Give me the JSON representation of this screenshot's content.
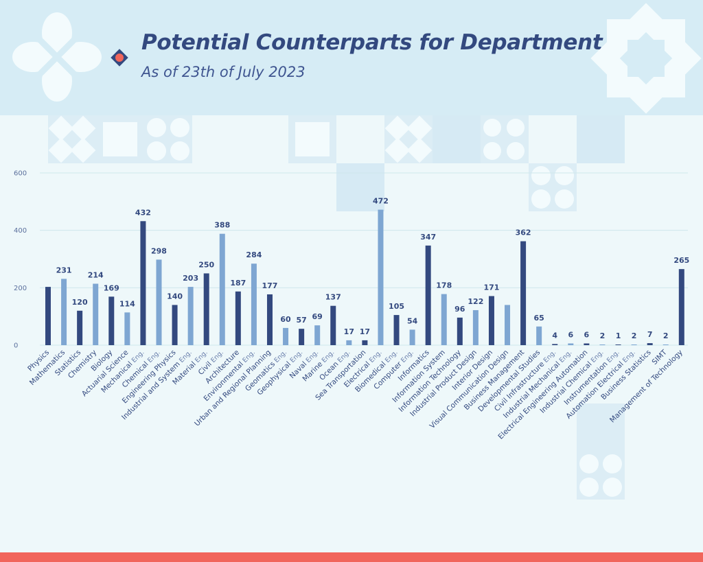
{
  "header": {
    "title": "Potential Counterparts for Department",
    "subtitle": "As of 23th of July 2023"
  },
  "colors": {
    "dark": "#33497f",
    "light": "#7ea6d2",
    "accent": "#f1655b",
    "grid": "#cfe7ec",
    "header_bg": "#d6ecf5",
    "background": "#eef8fa"
  },
  "icons": {
    "bullet": "diamond-bullet-icon",
    "logo": "four-petal-logo-icon",
    "ornament": "eight-point-star-icon"
  },
  "chart_data": {
    "type": "bar",
    "title": "Potential Counterparts for Department",
    "subtitle": "As of 23th of July 2023",
    "xlabel": "",
    "ylabel": "",
    "ylim": [
      0,
      600
    ],
    "yticks": [
      0,
      200,
      400,
      600
    ],
    "grid": true,
    "legend": "none",
    "categories": [
      "Physics",
      "Mathematics",
      "Statistics",
      "Chemistry",
      "Biology",
      "Actuarial Science",
      "Mechanical Eng.",
      "Chemical Eng.",
      "Engineering Physics",
      "Industrial and System Eng.",
      "Material Eng.",
      "Civil Eng.",
      "Architecture",
      "Environmental Eng.",
      "Urban and Regional Planning",
      "Geomatics Eng.",
      "Geophysical Eng.",
      "Naval Eng.",
      "Marine Eng.",
      "Ocean Eng.",
      "Sea Transportation",
      "Electrical Eng.",
      "Biomedical Eng.",
      "Computer Eng.",
      "Informatics",
      "Information System",
      "Information Technology",
      "Industrial Product Design",
      "Interior Design",
      "Visual Communication Design",
      "Business Management",
      "Developmental Studies",
      "Civil Infrastructure Eng.",
      "Industrial Mechanical Eng.",
      "Electrical Engineering Automation",
      "Industrial Chemical Eng.",
      "Instrumentation Eng.",
      "Automation Electrical Eng.",
      "Business Statistics",
      "SIMT",
      "Management of Technology"
    ],
    "values": [
      203,
      231,
      120,
      214,
      169,
      114,
      432,
      298,
      140,
      203,
      250,
      388,
      187,
      284,
      177,
      60,
      57,
      69,
      137,
      17,
      17,
      472,
      105,
      54,
      347,
      178,
      96,
      122,
      171,
      140,
      362,
      65,
      4,
      6,
      6,
      2,
      1,
      2,
      7,
      2,
      265
    ],
    "data_labels": [
      "",
      "231",
      "120",
      "214",
      "169",
      "114",
      "432",
      "298",
      "140",
      "203",
      "250",
      "388",
      "187",
      "284",
      "177",
      "60",
      "57",
      "69",
      "137",
      "17",
      "17",
      "472",
      "105",
      "54",
      "347",
      "178",
      "96",
      "122",
      "171",
      "",
      "362",
      "65",
      "4",
      "6",
      "6",
      "2",
      "1",
      "2",
      "7",
      "2",
      "265"
    ],
    "bar_colors": [
      "dark",
      "light",
      "dark",
      "light",
      "dark",
      "light",
      "dark",
      "light",
      "dark",
      "light",
      "dark",
      "light",
      "dark",
      "light",
      "dark",
      "light",
      "dark",
      "light",
      "dark",
      "light",
      "dark",
      "light",
      "dark",
      "light",
      "dark",
      "light",
      "dark",
      "light",
      "dark",
      "light",
      "dark",
      "light",
      "dark",
      "light",
      "dark",
      "light",
      "dark",
      "light",
      "dark",
      "light",
      "dark"
    ]
  }
}
